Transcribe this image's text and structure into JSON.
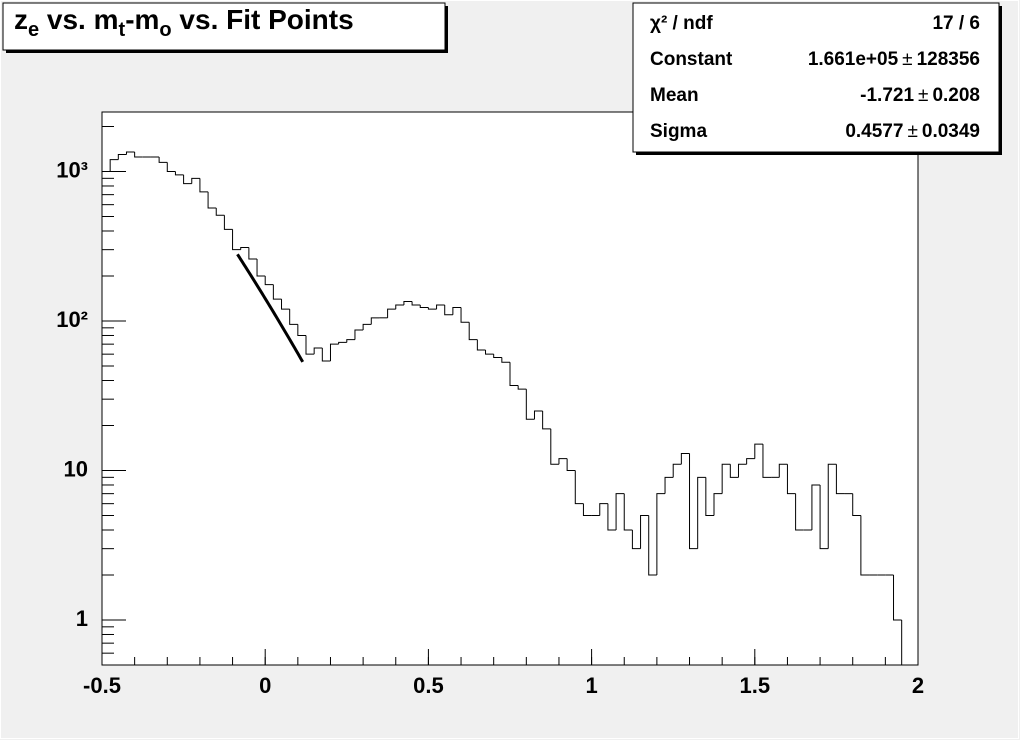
{
  "chart_data": {
    "type": "histogram",
    "title": [
      {
        "text": "z"
      },
      {
        "text": "e",
        "sub": true
      },
      {
        "text": " vs. m"
      },
      {
        "text": "t",
        "sub": true
      },
      {
        "text": "-m"
      },
      {
        "text": "o",
        "sub": true
      },
      {
        "text": " vs. Fit Points"
      }
    ],
    "bins": [
      -0.5,
      -0.475,
      -0.45,
      -0.425,
      -0.4,
      -0.375,
      -0.35,
      -0.325,
      -0.3,
      -0.275,
      -0.25,
      -0.225,
      -0.2,
      -0.175,
      -0.15,
      -0.125,
      -0.1,
      -0.075,
      -0.05,
      -0.025,
      0,
      0.025,
      0.05,
      0.075,
      0.1,
      0.125,
      0.15,
      0.175,
      0.2,
      0.225,
      0.25,
      0.275,
      0.3,
      0.325,
      0.35,
      0.375,
      0.4,
      0.425,
      0.45,
      0.475,
      0.5,
      0.525,
      0.55,
      0.575,
      0.6,
      0.625,
      0.65,
      0.675,
      0.7,
      0.725,
      0.75,
      0.775,
      0.8,
      0.825,
      0.85,
      0.875,
      0.9,
      0.925,
      0.95,
      0.975,
      1,
      1.025,
      1.05,
      1.075,
      1.1,
      1.125,
      1.15,
      1.175,
      1.2,
      1.225,
      1.25,
      1.275,
      1.3,
      1.325,
      1.35,
      1.375,
      1.4,
      1.425,
      1.45,
      1.475,
      1.5,
      1.525,
      1.55,
      1.575,
      1.6,
      1.625,
      1.65,
      1.675,
      1.7,
      1.725,
      1.75,
      1.775,
      1.8,
      1.825,
      1.85,
      1.875,
      1.9,
      1.925,
      1.95,
      1.975,
      2
    ],
    "values": [
      1000,
      1200,
      1300,
      1350,
      1250,
      1250,
      1250,
      1150,
      1000,
      950,
      830,
      900,
      730,
      570,
      510,
      410,
      300,
      310,
      260,
      200,
      175,
      140,
      120,
      95,
      80,
      60,
      66,
      54,
      70,
      72,
      75,
      87,
      95,
      105,
      105,
      120,
      128,
      135,
      128,
      123,
      120,
      128,
      110,
      123,
      98,
      75,
      64,
      60,
      57,
      53,
      37,
      35,
      22,
      25,
      19,
      11,
      12,
      10,
      6,
      5,
      5,
      6,
      4,
      7,
      4,
      3,
      5,
      2,
      7,
      9,
      11,
      13,
      3,
      9,
      5,
      7,
      11,
      9,
      11,
      12,
      15,
      9,
      9,
      11,
      7,
      4,
      4,
      8,
      3,
      11,
      7,
      7,
      5,
      2,
      2,
      2,
      2,
      1,
      0,
      0
    ],
    "color": "#000000",
    "xlim": [
      -0.5,
      2
    ],
    "xticks": [
      -0.5,
      0,
      0.5,
      1,
      1.5,
      2
    ],
    "ylim": [
      0.5,
      2500
    ],
    "yticks": [
      1,
      10,
      {
        "value": 100,
        "label": "10²"
      },
      {
        "value": 1000,
        "label": "10³"
      }
    ],
    "log_y": true,
    "fit": {
      "range": [
        -0.085,
        0.115
      ],
      "color": "#000000"
    },
    "stats": {
      "header": {
        "name": "χ² / ndf",
        "value": "17 / 6"
      },
      "plus_minus": "±",
      "rows": [
        {
          "name": "Constant",
          "value": {
            "value": 166100,
            "label": "1.661e+05"
          },
          "error": 128356
        },
        {
          "name": "Mean",
          "value": -1.721,
          "error": 0.208
        },
        {
          "name": "Sigma",
          "value": 0.4577,
          "error": 0.0349
        }
      ]
    }
  }
}
